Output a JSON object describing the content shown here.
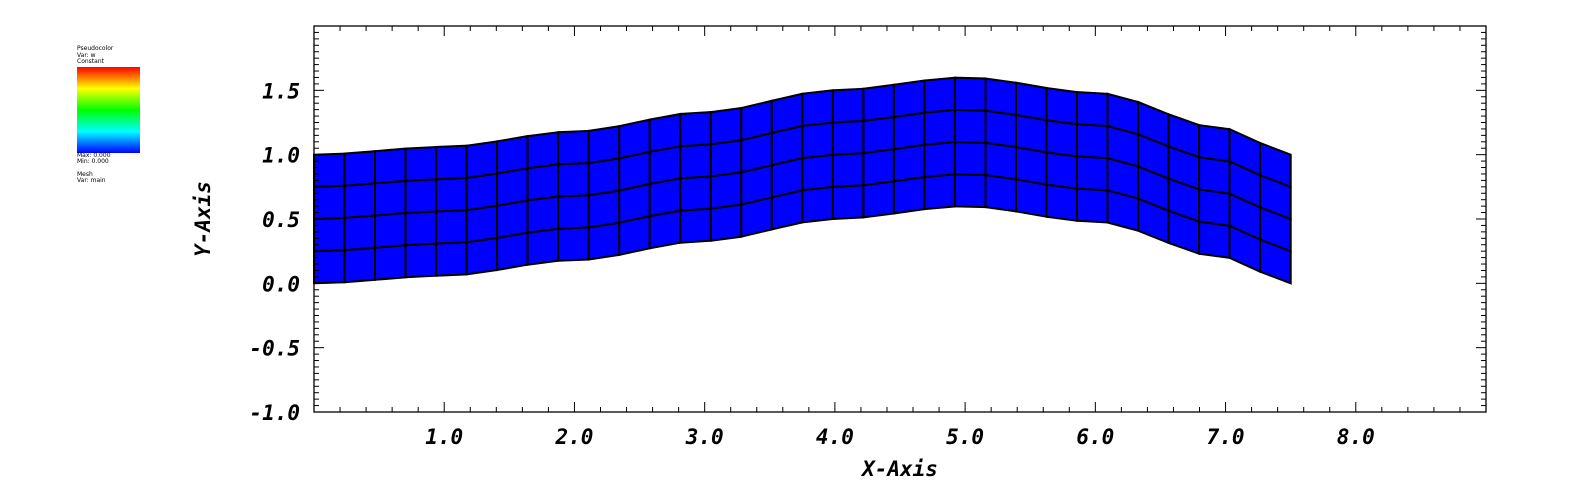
{
  "legend": {
    "plot_label": "Pseudocolor",
    "var_label": "Var: w",
    "constant_label": "Constant",
    "max_label": "Max: 0.000",
    "min_label": "Min: 0.000",
    "mesh_label": "Mesh",
    "mesh_var_label": "Var: main",
    "colormap": [
      "#ff0000",
      "#ffff00",
      "#00ff00",
      "#00ffff",
      "#0000ff"
    ]
  },
  "chart_data": {
    "type": "mesh",
    "xlabel": "X-Axis",
    "ylabel": "Y-Axis",
    "xlim": [
      0.0,
      9.0
    ],
    "ylim": [
      -1.0,
      2.0
    ],
    "x_ticks": [
      1.0,
      2.0,
      3.0,
      4.0,
      5.0,
      6.0,
      7.0,
      8.0
    ],
    "x_tick_labels": [
      "1.0",
      "2.0",
      "3.0",
      "4.0",
      "5.0",
      "6.0",
      "7.0",
      "8.0"
    ],
    "y_ticks": [
      -1.0,
      -0.5,
      0.0,
      0.5,
      1.0,
      1.5
    ],
    "y_tick_labels": [
      "-1.0",
      "-0.5",
      "0.0",
      "0.5",
      "1.0",
      "1.5"
    ],
    "fill_color": "#0000ff",
    "edge_color": "#000000",
    "mesh": {
      "x_range": [
        0.0,
        7.5
      ],
      "columns": 32,
      "rows": 4,
      "height": 1.0,
      "bottom_curve_x": [
        0.0,
        1.0,
        2.0,
        3.0,
        4.0,
        5.0,
        6.0,
        7.0,
        7.5
      ],
      "bottom_curve_y": [
        0.0,
        0.06,
        0.18,
        0.33,
        0.5,
        0.6,
        0.48,
        0.2,
        0.0
      ]
    }
  }
}
